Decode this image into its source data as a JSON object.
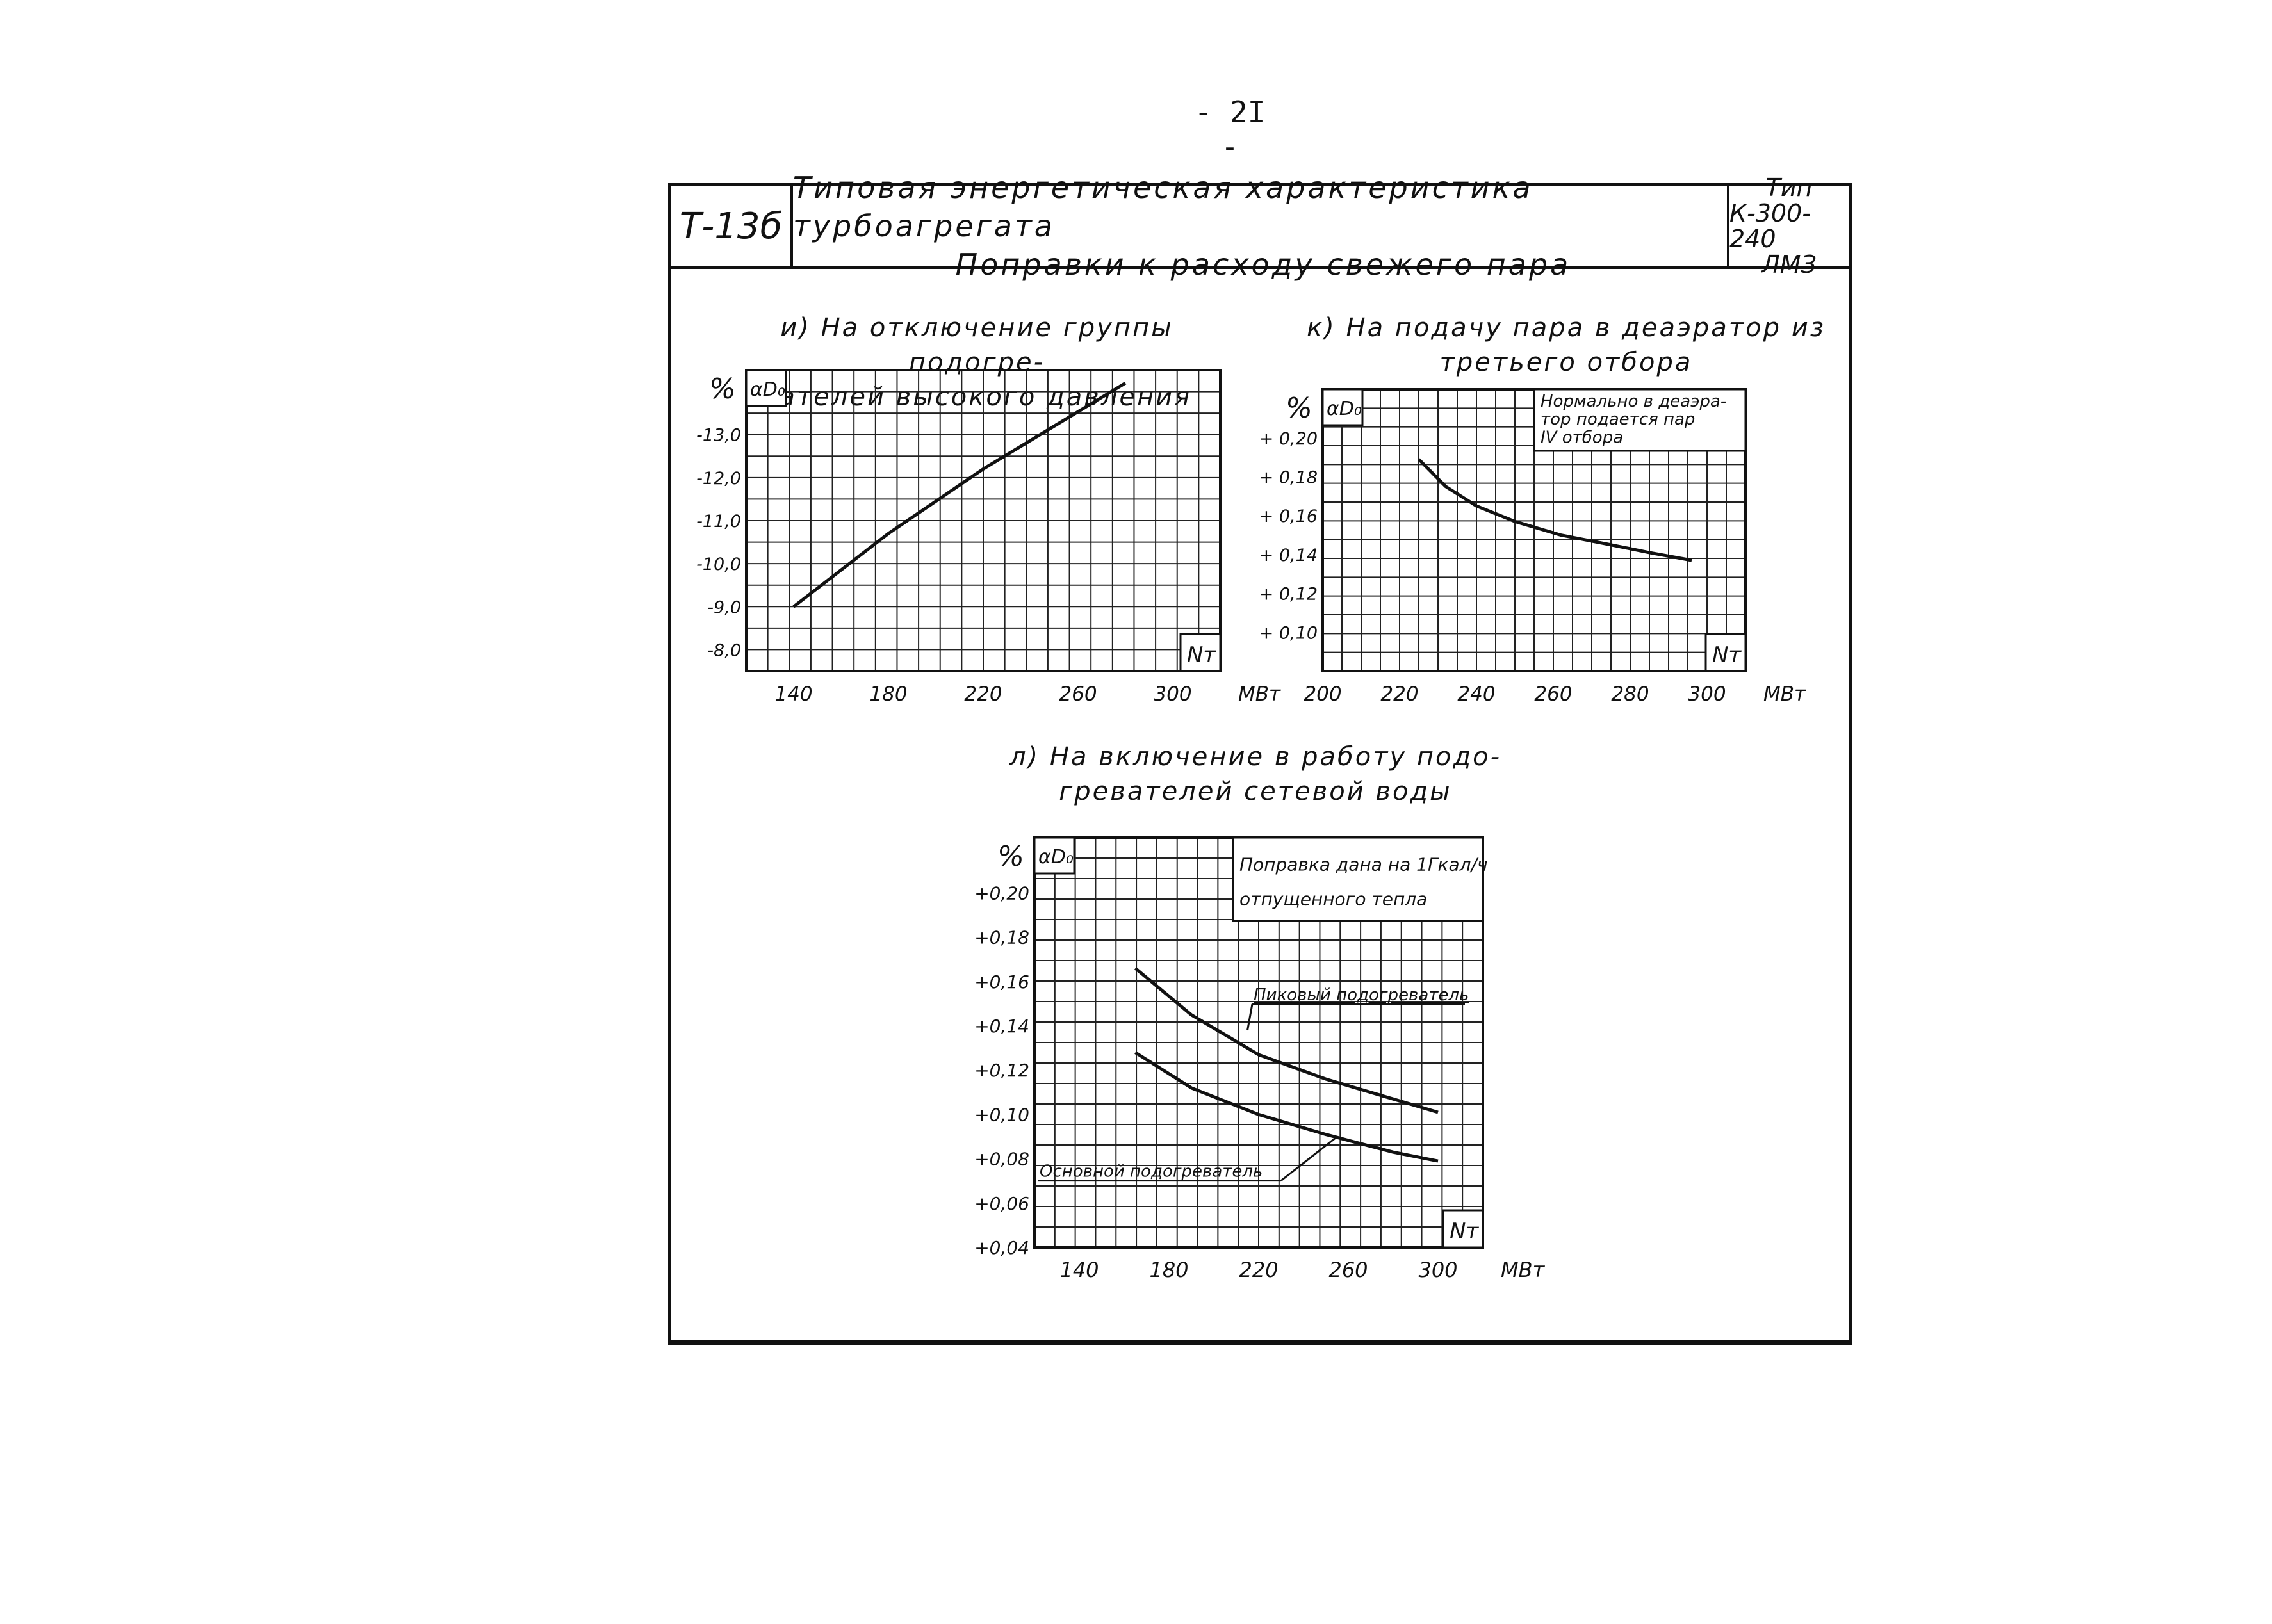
{
  "page": {
    "number": "- 2I -"
  },
  "header": {
    "code": "Т-13б",
    "title_line1": "Типовая энергетическая характеристика турбоагрегата",
    "title_line2": "Поправки к расходу свежего пара",
    "type_line1": "Тип",
    "type_line2": "К-300-240",
    "type_line3": "ЛМЗ"
  },
  "chart_data": [
    {
      "id": "i",
      "type": "line",
      "caption_line1": "и) На отключение группы подогре-",
      "caption_line2": "вателей высокого давления",
      "unit_label": "%",
      "ylabel": "αD₀",
      "xlabel": "Nт",
      "x_unit": "МВт",
      "xlim": [
        120,
        320
      ],
      "ylim": [
        -7.5,
        -14.5
      ],
      "xticks": [
        140,
        180,
        220,
        260,
        300
      ],
      "xtick_labels": [
        "140",
        "180",
        "220",
        "260",
        "300"
      ],
      "yticks": [
        -13.0,
        -12.0,
        -11.0,
        -10.0,
        -9.0,
        -8.0
      ],
      "ytick_labels": [
        "-13,0",
        "-12,0",
        "-11,0",
        "-10,0",
        "-9,0",
        "-8,0"
      ],
      "grid": true,
      "series": [
        {
          "x": [
            140,
            180,
            220,
            250,
            280
          ],
          "y": [
            -9.0,
            -10.7,
            -12.2,
            -13.2,
            -14.2
          ]
        }
      ]
    },
    {
      "id": "k",
      "type": "line",
      "caption_line1": "к) На подачу пара в деаэратор из",
      "caption_line2": "третьего отбора",
      "unit_label": "%",
      "ylabel": "αD₀",
      "xlabel": "Nт",
      "x_unit": "МВт",
      "xlim": [
        200,
        310
      ],
      "ylim": [
        0.08,
        0.225
      ],
      "xticks": [
        200,
        220,
        240,
        260,
        280,
        300
      ],
      "xtick_labels": [
        "200",
        "220",
        "240",
        "260",
        "280",
        "300"
      ],
      "yticks": [
        0.2,
        0.18,
        0.16,
        0.14,
        0.12,
        0.1
      ],
      "ytick_labels": [
        "+ 0,20",
        "+ 0,18",
        "+ 0,16",
        "+ 0,14",
        "+ 0,12",
        "+ 0,10"
      ],
      "grid": true,
      "note_line1": "Нормально в деаэра-",
      "note_line2": "тор подается пар",
      "note_line3": "IV отбора",
      "series": [
        {
          "x": [
            225,
            232,
            240,
            250,
            262,
            275,
            285,
            296
          ],
          "y": [
            0.189,
            0.175,
            0.165,
            0.157,
            0.15,
            0.145,
            0.141,
            0.137
          ]
        }
      ]
    },
    {
      "id": "l",
      "type": "line",
      "caption_line1": "л) На включение в работу подо-",
      "caption_line2": "гревателей сетевой воды",
      "unit_label": "%",
      "ylabel": "αD₀",
      "xlabel": "Nт",
      "x_unit": "МВт",
      "xlim": [
        120,
        320
      ],
      "ylim": [
        0.04,
        0.225
      ],
      "xticks": [
        140,
        180,
        220,
        260,
        300
      ],
      "xtick_labels": [
        "140",
        "180",
        "220",
        "260",
        "300"
      ],
      "yticks": [
        0.2,
        0.18,
        0.16,
        0.14,
        0.12,
        0.1,
        0.08,
        0.06,
        0.04
      ],
      "ytick_labels": [
        "+0,20",
        "+0,18",
        "+0,16",
        "+0,14",
        "+0,12",
        "+0,10",
        "+0,08",
        "+0,06",
        "+0,04"
      ],
      "grid": true,
      "note_line1": "Поправка дана на 1Гкал/ч",
      "note_line2": "отпущенного тепла",
      "series": [
        {
          "name": "Пиковый подогреватель",
          "x": [
            165,
            190,
            220,
            250,
            280,
            300
          ],
          "y": [
            0.166,
            0.145,
            0.127,
            0.116,
            0.107,
            0.101
          ]
        },
        {
          "name": "Основной подогреватель",
          "x": [
            165,
            190,
            220,
            250,
            280,
            300
          ],
          "y": [
            0.128,
            0.112,
            0.1,
            0.091,
            0.083,
            0.079
          ]
        }
      ]
    }
  ]
}
